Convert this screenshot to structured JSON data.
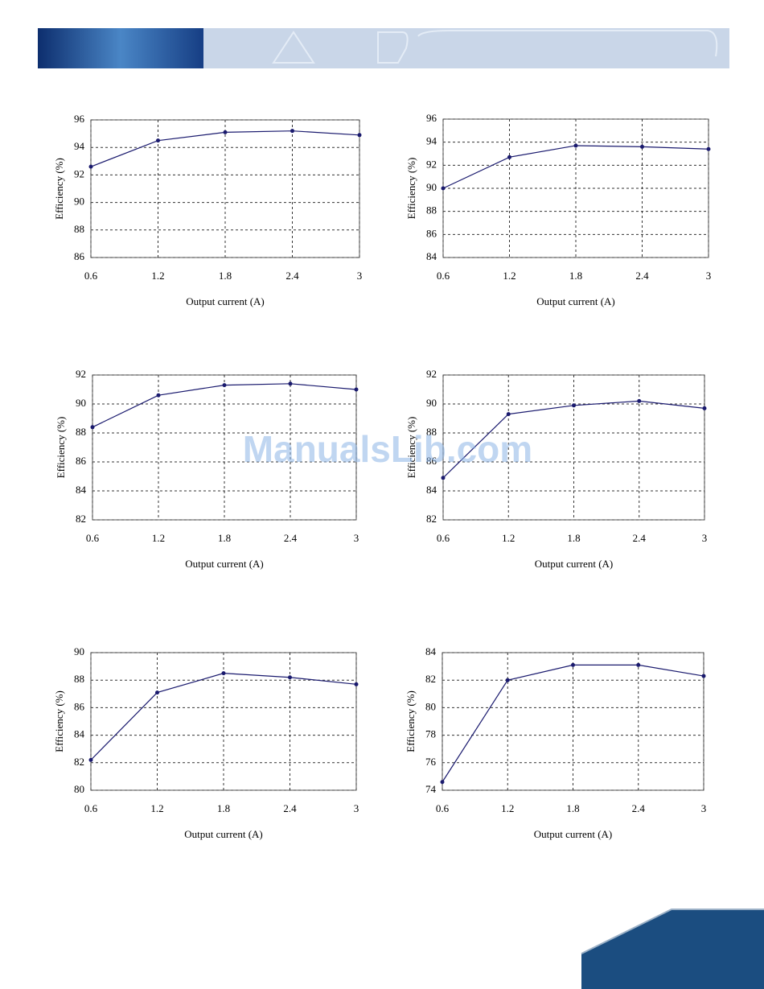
{
  "chart_data": [
    {
      "type": "line",
      "x": [
        0.6,
        1.2,
        1.8,
        2.4,
        3
      ],
      "values": [
        92.6,
        94.5,
        95.1,
        95.2,
        94.9
      ],
      "color": "#1a1a6e",
      "xlim": [
        0.6,
        3
      ],
      "ylim": [
        86,
        96
      ],
      "xticks": [
        0.6,
        1.2,
        1.8,
        2.4,
        3
      ],
      "yticks": [
        86,
        88,
        90,
        92,
        94,
        96
      ],
      "grid": true,
      "xlabel": "Output current (A)",
      "ylabel": "Efficiency (%)"
    },
    {
      "type": "line",
      "x": [
        0.6,
        1.2,
        1.8,
        2.4,
        3
      ],
      "values": [
        90.0,
        92.7,
        93.7,
        93.6,
        93.4
      ],
      "color": "#1a1a6e",
      "xlim": [
        0.6,
        3
      ],
      "ylim": [
        84,
        96
      ],
      "xticks": [
        0.6,
        1.2,
        1.8,
        2.4,
        3
      ],
      "yticks": [
        84,
        86,
        88,
        90,
        92,
        94,
        96
      ],
      "grid": true,
      "xlabel": "Output current (A)",
      "ylabel": "Efficiency (%)"
    },
    {
      "type": "line",
      "x": [
        0.6,
        1.2,
        1.8,
        2.4,
        3
      ],
      "values": [
        88.4,
        90.6,
        91.3,
        91.4,
        91.0
      ],
      "color": "#1a1a6e",
      "xlim": [
        0.6,
        3
      ],
      "ylim": [
        82,
        92
      ],
      "xticks": [
        0.6,
        1.2,
        1.8,
        2.4,
        3
      ],
      "yticks": [
        82,
        84,
        86,
        88,
        90,
        92
      ],
      "grid": true,
      "xlabel": "Output current (A)",
      "ylabel": "Efficiency (%)"
    },
    {
      "type": "line",
      "x": [
        0.6,
        1.2,
        1.8,
        2.4,
        3
      ],
      "values": [
        84.9,
        89.3,
        89.9,
        90.2,
        89.7
      ],
      "color": "#1a1a6e",
      "xlim": [
        0.6,
        3
      ],
      "ylim": [
        82,
        92
      ],
      "xticks": [
        0.6,
        1.2,
        1.8,
        2.4,
        3
      ],
      "yticks": [
        82,
        84,
        86,
        88,
        90,
        92
      ],
      "grid": true,
      "xlabel": "Output current (A)",
      "ylabel": "Efficiency (%)"
    },
    {
      "type": "line",
      "x": [
        0.6,
        1.2,
        1.8,
        2.4,
        3
      ],
      "values": [
        82.2,
        87.1,
        88.5,
        88.2,
        87.7
      ],
      "color": "#1a1a6e",
      "xlim": [
        0.6,
        3
      ],
      "ylim": [
        80,
        90
      ],
      "xticks": [
        0.6,
        1.2,
        1.8,
        2.4,
        3
      ],
      "yticks": [
        80,
        82,
        84,
        86,
        88,
        90
      ],
      "grid": true,
      "xlabel": "Output current (A)",
      "ylabel": "Efficiency (%)"
    },
    {
      "type": "line",
      "x": [
        0.6,
        1.2,
        1.8,
        2.4,
        3
      ],
      "values": [
        74.6,
        82.0,
        83.1,
        83.1,
        82.3
      ],
      "color": "#1a1a6e",
      "xlim": [
        0.6,
        3
      ],
      "ylim": [
        74,
        84
      ],
      "xticks": [
        0.6,
        1.2,
        1.8,
        2.4,
        3
      ],
      "yticks": [
        74,
        76,
        78,
        80,
        82,
        84
      ],
      "grid": true,
      "xlabel": "Output current (A)",
      "ylabel": "Efficiency (%)"
    }
  ],
  "watermark": "ManualsLib.com"
}
